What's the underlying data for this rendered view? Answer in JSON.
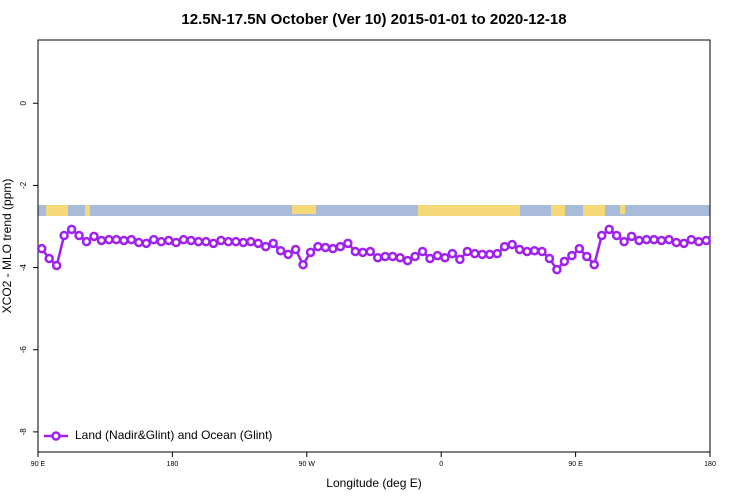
{
  "chart_data": {
    "type": "line",
    "title": "12.5N-17.5N October (Ver 10)   2015-01-01 to 2020-12-18",
    "x_label": "Longitude (deg E)",
    "y_label": "XCO2 - MLO trend (ppm)",
    "x": [
      92.5,
      97.5,
      102.5,
      107.5,
      112.5,
      117.5,
      122.5,
      127.5,
      132.5,
      137.5,
      142.5,
      147.5,
      152.5,
      157.5,
      162.5,
      167.5,
      172.5,
      177.5,
      182.5,
      187.5,
      192.5,
      197.5,
      202.5,
      207.5,
      212.5,
      217.5,
      222.5,
      227.5,
      232.5,
      237.5,
      242.5,
      247.5,
      252.5,
      257.5,
      262.5,
      267.5,
      272.5,
      277.5,
      282.5,
      287.5,
      292.5,
      297.5,
      302.5,
      307.5,
      312.5,
      317.5,
      322.5,
      327.5,
      332.5,
      337.5,
      342.5,
      347.5,
      352.5,
      357.5,
      362.5,
      367.5,
      372.5,
      377.5,
      382.5,
      387.5,
      392.5,
      397.5,
      402.5,
      407.5,
      412.5,
      417.5,
      422.5,
      427.5,
      432.5,
      437.5,
      442.5,
      447.5,
      452.5,
      457.5,
      462.5,
      467.5,
      472.5,
      477.5,
      482.5,
      487.5,
      492.5,
      497.5,
      502.5,
      507.5,
      512.5,
      517.5,
      522.5,
      527.5,
      532.5,
      537.5
    ],
    "series": [
      {
        "name": "Land (Nadir&Glint) and Ocean (Glint)",
        "color": "#a020f0",
        "values": [
          -3.54,
          -3.78,
          -3.95,
          -3.22,
          -3.07,
          -3.22,
          -3.37,
          -3.24,
          -3.34,
          -3.32,
          -3.32,
          -3.34,
          -3.32,
          -3.39,
          -3.41,
          -3.32,
          -3.37,
          -3.34,
          -3.39,
          -3.32,
          -3.34,
          -3.37,
          -3.37,
          -3.41,
          -3.34,
          -3.37,
          -3.37,
          -3.39,
          -3.37,
          -3.41,
          -3.49,
          -3.41,
          -3.59,
          -3.68,
          -3.56,
          -3.93,
          -3.63,
          -3.49,
          -3.51,
          -3.54,
          -3.49,
          -3.41,
          -3.61,
          -3.63,
          -3.61,
          -3.76,
          -3.73,
          -3.73,
          -3.76,
          -3.83,
          -3.73,
          -3.61,
          -3.78,
          -3.71,
          -3.76,
          -3.66,
          -3.8,
          -3.61,
          -3.66,
          -3.68,
          -3.68,
          -3.66,
          -3.49,
          -3.44,
          -3.56,
          -3.61,
          -3.59,
          -3.61,
          -3.78,
          -4.05,
          -3.85,
          -3.71,
          -3.54,
          -3.73,
          -3.93,
          -3.22,
          -3.07,
          -3.22,
          -3.37,
          -3.24,
          -3.34,
          -3.32,
          -3.32,
          -3.34,
          -3.32,
          -3.39,
          -3.41,
          -3.32,
          -3.37,
          -3.34
        ]
      }
    ],
    "xlim": [
      90,
      540
    ],
    "xticks": [
      {
        "value": 90,
        "label": "90 E"
      },
      180,
      {
        "value": 270,
        "label": "90 W"
      },
      {
        "value": 360,
        "label": "0"
      },
      {
        "value": 450,
        "label": "90 E"
      },
      {
        "value": 540,
        "label": "180"
      }
    ],
    "ylim": [
      -8.49,
      1.54
    ],
    "yticks": [
      0,
      -2,
      -4,
      -6,
      -8
    ],
    "legend": "bottom-left"
  }
}
